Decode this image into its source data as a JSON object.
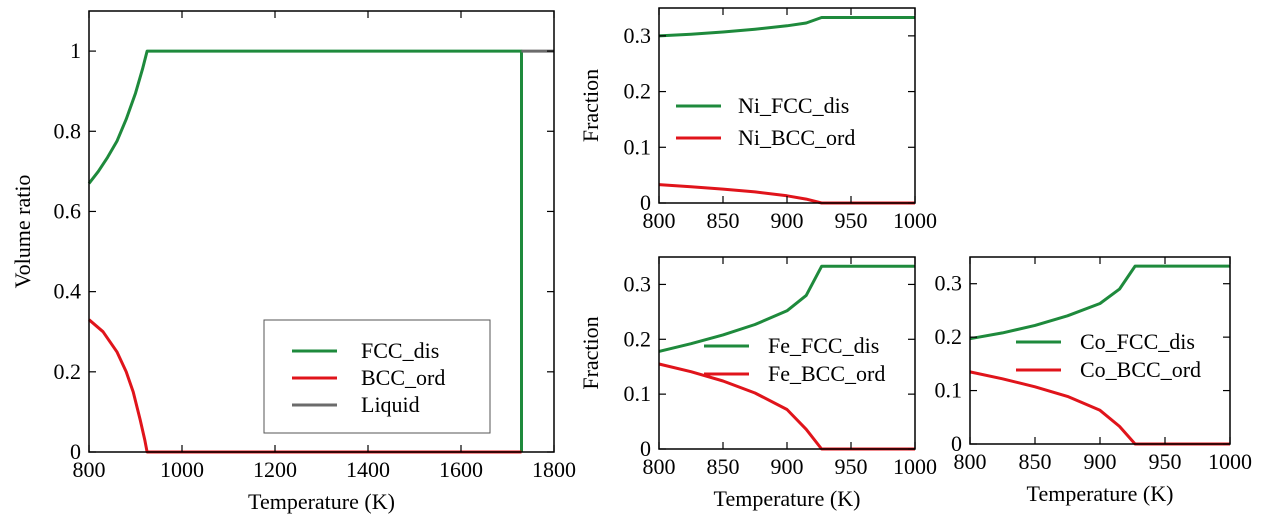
{
  "colors": {
    "green": "#1e8a3c",
    "red": "#e0141b",
    "gray": "#6b6b6b",
    "frame": "#000000"
  },
  "chart_data": [
    {
      "id": "volume",
      "type": "line",
      "xlabel": "Temperature (K)",
      "ylabel": "Volume ratio",
      "xlim": [
        800,
        1800
      ],
      "ylim": [
        0,
        1.1
      ],
      "xticks": [
        800,
        1000,
        1200,
        1400,
        1600,
        1800
      ],
      "xtick_labels": [
        "800",
        "1000",
        "1200",
        "1400",
        "1600",
        "1800"
      ],
      "yticks": [
        0,
        0.2,
        0.4,
        0.6,
        0.8,
        1
      ],
      "ytick_labels": [
        "0",
        "0.2",
        "0.4",
        "0.6",
        "0.8",
        "1"
      ],
      "grid": false,
      "legend": "bottom-right",
      "series": [
        {
          "name": "FCC_dis",
          "color": "green",
          "points": [
            [
              800,
              0.67
            ],
            [
              820,
              0.7
            ],
            [
              840,
              0.735
            ],
            [
              860,
              0.775
            ],
            [
              880,
              0.83
            ],
            [
              900,
              0.895
            ],
            [
              915,
              0.955
            ],
            [
              925,
              1.0
            ],
            [
              1730,
              1.0
            ],
            [
              1730,
              0
            ]
          ]
        },
        {
          "name": "BCC_ord",
          "color": "red",
          "points": [
            [
              800,
              0.33
            ],
            [
              830,
              0.3
            ],
            [
              860,
              0.25
            ],
            [
              880,
              0.2
            ],
            [
              895,
              0.15
            ],
            [
              910,
              0.08
            ],
            [
              920,
              0.03
            ],
            [
              925,
              0
            ],
            [
              1730,
              0
            ]
          ]
        },
        {
          "name": "Liquid",
          "color": "gray",
          "points": [
            [
              1730,
              1.0
            ],
            [
              1800,
              1.0
            ]
          ]
        }
      ]
    },
    {
      "id": "ni",
      "type": "line",
      "xlabel": "",
      "ylabel": "Fraction",
      "xlim": [
        800,
        1000
      ],
      "ylim": [
        0,
        0.35
      ],
      "xticks": [
        800,
        850,
        900,
        950,
        1000
      ],
      "xtick_labels": [
        "800",
        "850",
        "900",
        "950",
        "1000"
      ],
      "yticks": [
        0,
        0.1,
        0.2,
        0.3
      ],
      "ytick_labels": [
        "0",
        "0.1",
        "0.2",
        "0.3"
      ],
      "grid": false,
      "legend": "center-left",
      "series": [
        {
          "name": "Ni_FCC_dis",
          "color": "green",
          "points": [
            [
              800,
              0.3
            ],
            [
              825,
              0.303
            ],
            [
              850,
              0.307
            ],
            [
              875,
              0.312
            ],
            [
              900,
              0.318
            ],
            [
              915,
              0.323
            ],
            [
              927,
              0.333
            ],
            [
              1000,
              0.333
            ]
          ]
        },
        {
          "name": "Ni_BCC_ord",
          "color": "red",
          "points": [
            [
              800,
              0.033
            ],
            [
              825,
              0.029
            ],
            [
              850,
              0.025
            ],
            [
              875,
              0.02
            ],
            [
              900,
              0.013
            ],
            [
              915,
              0.007
            ],
            [
              927,
              0
            ],
            [
              1000,
              0
            ]
          ]
        }
      ]
    },
    {
      "id": "fe",
      "type": "line",
      "xlabel": "Temperature (K)",
      "ylabel": "Fraction",
      "xlim": [
        800,
        1000
      ],
      "ylim": [
        0,
        0.35
      ],
      "xticks": [
        800,
        850,
        900,
        950,
        1000
      ],
      "xtick_labels": [
        "800",
        "850",
        "900",
        "950",
        "1000"
      ],
      "yticks": [
        0,
        0.1,
        0.2,
        0.3
      ],
      "ytick_labels": [
        "0",
        "0.1",
        "0.2",
        "0.3"
      ],
      "grid": false,
      "legend": "center-right",
      "series": [
        {
          "name": "Fe_FCC_dis",
          "color": "green",
          "points": [
            [
              800,
              0.178
            ],
            [
              825,
              0.192
            ],
            [
              850,
              0.208
            ],
            [
              875,
              0.227
            ],
            [
              900,
              0.252
            ],
            [
              915,
              0.28
            ],
            [
              927,
              0.333
            ],
            [
              1000,
              0.333
            ]
          ]
        },
        {
          "name": "Fe_BCC_ord",
          "color": "red",
          "points": [
            [
              800,
              0.155
            ],
            [
              825,
              0.141
            ],
            [
              850,
              0.124
            ],
            [
              875,
              0.102
            ],
            [
              900,
              0.072
            ],
            [
              915,
              0.036
            ],
            [
              927,
              0
            ],
            [
              1000,
              0
            ]
          ]
        }
      ]
    },
    {
      "id": "co",
      "type": "line",
      "xlabel": "Temperature (K)",
      "ylabel": "",
      "xlim": [
        800,
        1000
      ],
      "ylim": [
        0,
        0.35
      ],
      "xticks": [
        800,
        850,
        900,
        950,
        1000
      ],
      "xtick_labels": [
        "800",
        "850",
        "900",
        "950",
        "1000"
      ],
      "yticks": [
        0,
        0.1,
        0.2,
        0.3
      ],
      "ytick_labels": [
        "0",
        "0.1",
        "0.2",
        "0.3"
      ],
      "grid": false,
      "legend": "center-right",
      "series": [
        {
          "name": "Co_FCC_dis",
          "color": "green",
          "points": [
            [
              800,
              0.197
            ],
            [
              825,
              0.208
            ],
            [
              850,
              0.222
            ],
            [
              875,
              0.24
            ],
            [
              900,
              0.263
            ],
            [
              915,
              0.29
            ],
            [
              927,
              0.333
            ],
            [
              1000,
              0.333
            ]
          ]
        },
        {
          "name": "Co_BCC_ord",
          "color": "red",
          "points": [
            [
              800,
              0.135
            ],
            [
              825,
              0.122
            ],
            [
              850,
              0.107
            ],
            [
              875,
              0.089
            ],
            [
              900,
              0.063
            ],
            [
              915,
              0.033
            ],
            [
              927,
              0
            ],
            [
              1000,
              0
            ]
          ]
        }
      ]
    }
  ]
}
